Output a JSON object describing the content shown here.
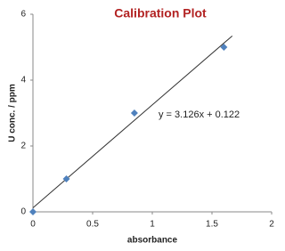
{
  "chart_data": {
    "type": "scatter",
    "title": "Calibration  Plot",
    "x_label": "absorbance",
    "y_label": "U conc. / ppm",
    "x": [
      0,
      0.28,
      0.85,
      1.6
    ],
    "values": [
      0,
      1,
      3,
      5
    ],
    "color": "#4f81bd",
    "xlim": [
      0,
      2
    ],
    "xticks": [
      0,
      0.5,
      1,
      1.5,
      2
    ],
    "ylim": [
      0,
      6
    ],
    "yticks": [
      0,
      2,
      4,
      6
    ],
    "grid": false,
    "trendline": {
      "slope": 3.126,
      "intercept": 0.122,
      "label": "y = 3.126x + 0.122",
      "xrange": [
        0,
        1.67
      ],
      "color": "#333333"
    }
  }
}
